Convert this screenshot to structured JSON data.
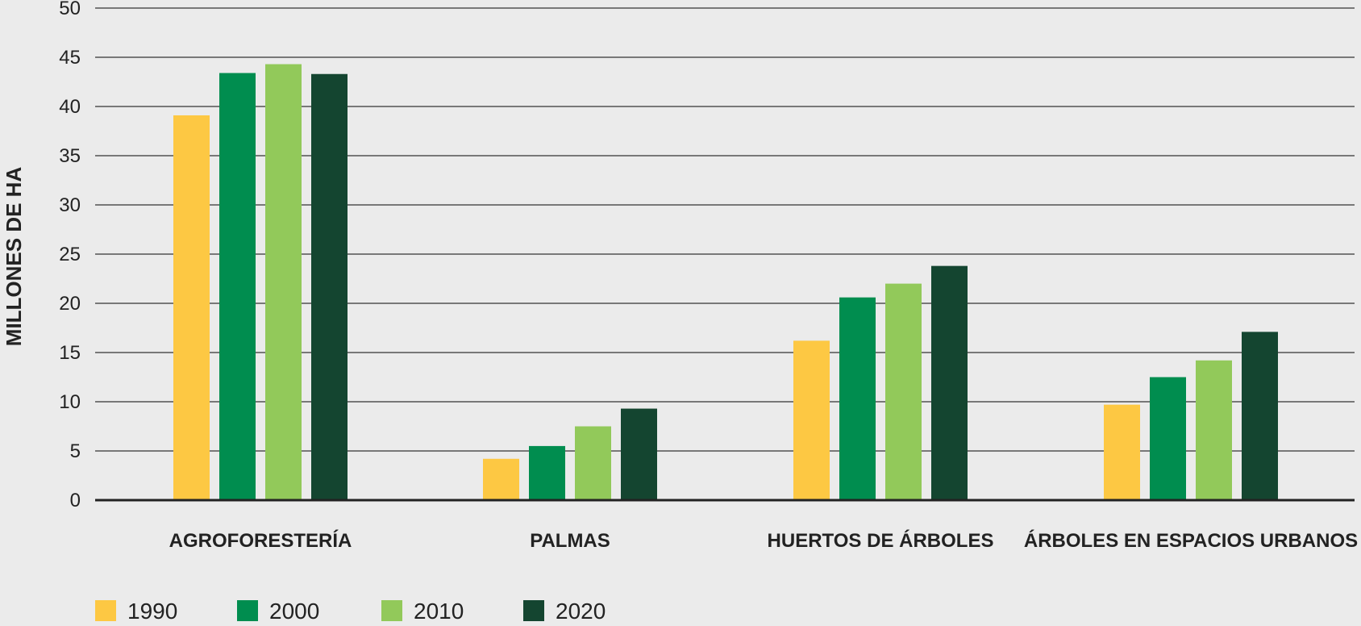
{
  "chart_data": {
    "type": "bar",
    "title": "",
    "xlabel": "",
    "ylabel": "MILLONES DE HA",
    "ylim": [
      0,
      50
    ],
    "yticks": [
      0,
      5,
      10,
      15,
      20,
      25,
      30,
      35,
      40,
      45,
      50
    ],
    "grid": true,
    "legend_position": "bottom-left",
    "categories": [
      "AGROFORESTERÍA",
      "PALMAS",
      "HUERTOS DE ÁRBOLES",
      "ÁRBOLES EN ESPACIOS URBANOS"
    ],
    "series": [
      {
        "name": "1990",
        "color": "#fdc843",
        "values": [
          39.1,
          4.2,
          16.2,
          9.7
        ]
      },
      {
        "name": "2000",
        "color": "#008d4f",
        "values": [
          43.4,
          5.5,
          20.6,
          12.5
        ]
      },
      {
        "name": "2010",
        "color": "#92c95a",
        "values": [
          44.3,
          7.5,
          22.0,
          14.2
        ]
      },
      {
        "name": "2020",
        "color": "#144530",
        "values": [
          43.3,
          9.3,
          23.8,
          17.1
        ]
      }
    ]
  }
}
